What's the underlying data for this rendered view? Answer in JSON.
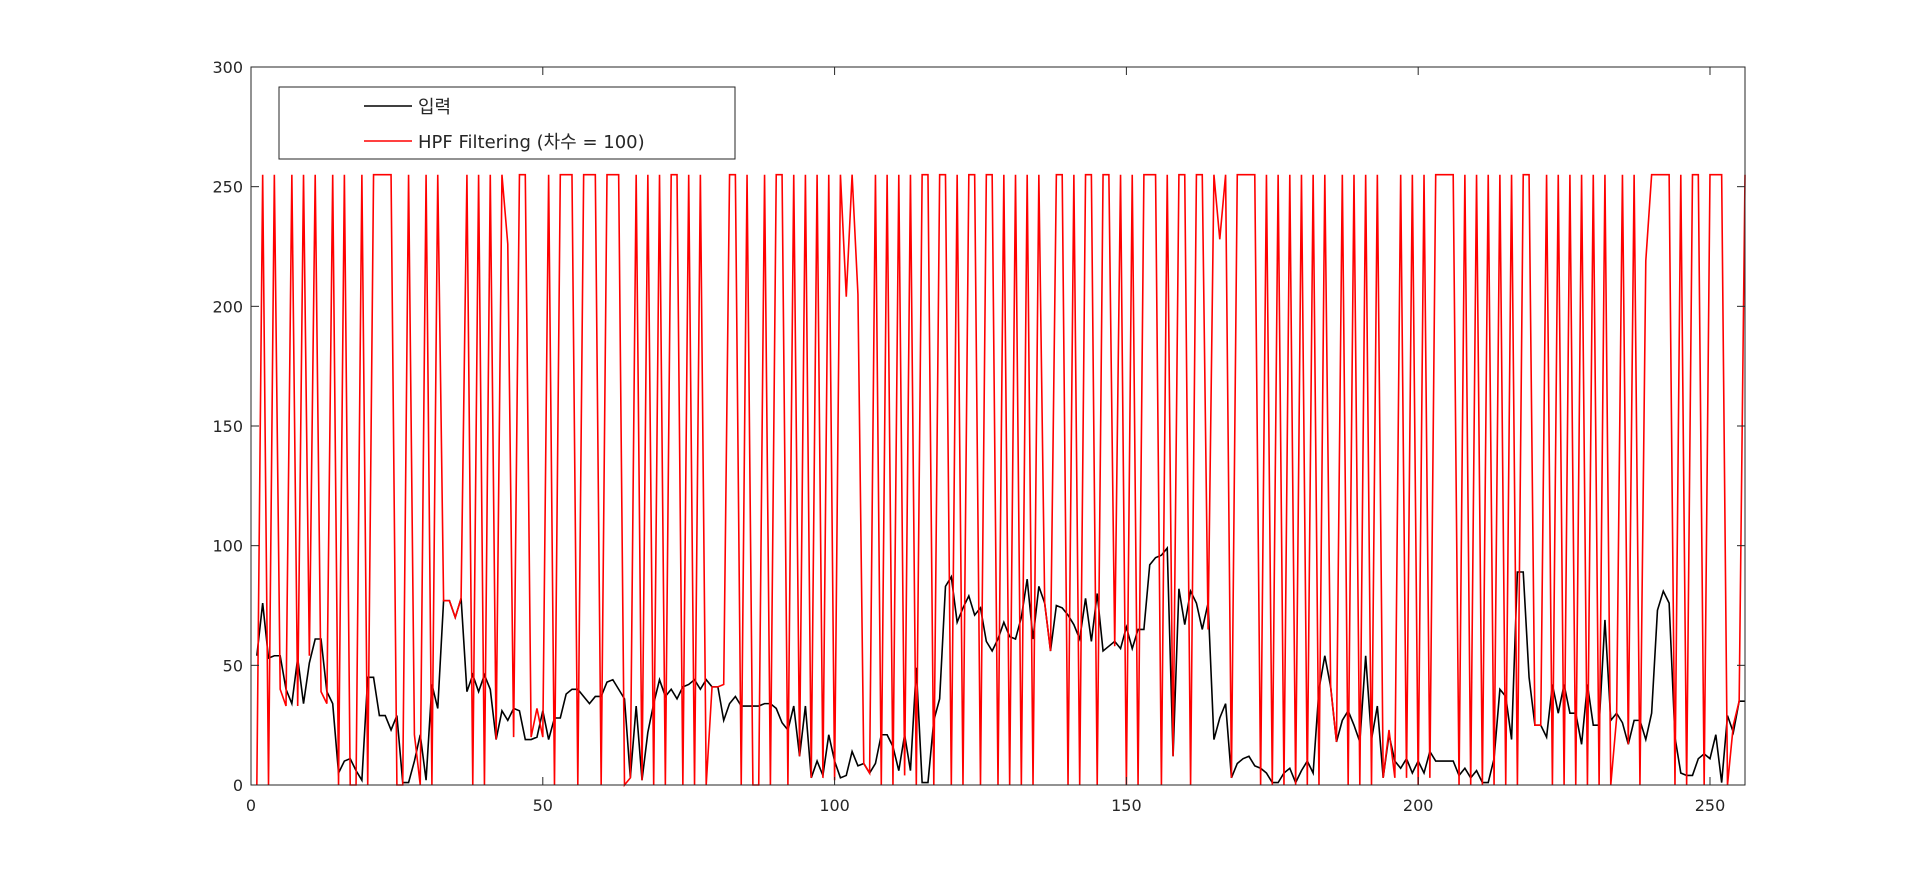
{
  "chart_data": {
    "type": "line",
    "xlim": [
      0,
      256
    ],
    "ylim": [
      0,
      300
    ],
    "xticks": [
      0,
      50,
      100,
      150,
      200,
      250
    ],
    "yticks": [
      0,
      50,
      100,
      150,
      200,
      250,
      300
    ],
    "grid": false,
    "legend_position": "top-left",
    "series": [
      {
        "name": "입력",
        "color": "#000000",
        "x_start": 1,
        "values": [
          54,
          76,
          53,
          54,
          54,
          40,
          34,
          53,
          34,
          51,
          61,
          61,
          39,
          34,
          5,
          10,
          11,
          6,
          2,
          45,
          45,
          29,
          29,
          23,
          29,
          1,
          1,
          10,
          21,
          2,
          42,
          32,
          77,
          77,
          70,
          78,
          39,
          46,
          39,
          46,
          40,
          19,
          31,
          27,
          32,
          31,
          19,
          19,
          20,
          31,
          19,
          28,
          28,
          38,
          40,
          40,
          37,
          34,
          37,
          37,
          43,
          44,
          40,
          36,
          3,
          33,
          2,
          22,
          34,
          44,
          37,
          40,
          36,
          41,
          42,
          44,
          40,
          44,
          41,
          41,
          27,
          34,
          37,
          33,
          33,
          33,
          33,
          34,
          34,
          32,
          26,
          23,
          33,
          12,
          33,
          3,
          10,
          4,
          21,
          10,
          3,
          4,
          14,
          8,
          9,
          5,
          9,
          21,
          21,
          16,
          6,
          21,
          6,
          49,
          1,
          1,
          27,
          36,
          83,
          87,
          68,
          74,
          79,
          71,
          74,
          60,
          56,
          61,
          68,
          62,
          61,
          70,
          86,
          61,
          83,
          76,
          56,
          75,
          74,
          71,
          67,
          61,
          78,
          60,
          80,
          56,
          58,
          60,
          57,
          66,
          57,
          65,
          65,
          92,
          95,
          96,
          99,
          12,
          82,
          67,
          81,
          76,
          65,
          76,
          19,
          28,
          34,
          3,
          9,
          11,
          12,
          8,
          7,
          5,
          1,
          1,
          5,
          7,
          1,
          6,
          10,
          5,
          40,
          54,
          41,
          18,
          27,
          31,
          25,
          18,
          54,
          19,
          33,
          3,
          21,
          10,
          7,
          11,
          5,
          10,
          5,
          14,
          10,
          10,
          10,
          10,
          4,
          7,
          3,
          6,
          1,
          1,
          11,
          40,
          37,
          19,
          89,
          89,
          45,
          25,
          25,
          20,
          42,
          30,
          42,
          30,
          30,
          17,
          42,
          25,
          25,
          69,
          27,
          30,
          26,
          17,
          27,
          27,
          19,
          30,
          73,
          81,
          76,
          20,
          5,
          4,
          4,
          11,
          13,
          11,
          21,
          1,
          29,
          22,
          35,
          35
        ]
      },
      {
        "name": "HPF Filtering (차수 = 100)",
        "color": "#ff0000",
        "x_start": 1,
        "values": [
          0,
          255,
          0,
          255,
          40,
          33,
          255,
          33,
          255,
          54,
          255,
          39,
          34,
          255,
          0,
          255,
          0,
          0,
          255,
          0,
          255,
          255,
          255,
          255,
          0,
          0,
          255,
          21,
          0,
          255,
          0,
          255,
          77,
          77,
          70,
          78,
          255,
          0,
          255,
          0,
          255,
          19,
          255,
          226,
          20,
          255,
          255,
          20,
          32,
          20,
          255,
          0,
          255,
          255,
          255,
          0,
          255,
          255,
          255,
          0,
          255,
          255,
          255,
          0,
          3,
          255,
          2,
          255,
          0,
          255,
          0,
          255,
          255,
          0,
          255,
          0,
          255,
          0,
          41,
          41,
          42,
          255,
          255,
          0,
          255,
          0,
          0,
          255,
          0,
          255,
          255,
          0,
          255,
          12,
          255,
          3,
          255,
          3,
          255,
          2,
          255,
          204,
          255,
          205,
          9,
          5,
          255,
          0,
          255,
          0,
          255,
          4,
          255,
          0,
          255,
          255,
          0,
          255,
          255,
          0,
          255,
          0,
          255,
          255,
          0,
          255,
          255,
          0,
          255,
          0,
          255,
          0,
          255,
          0,
          255,
          76,
          56,
          255,
          255,
          0,
          255,
          0,
          255,
          255,
          0,
          255,
          255,
          58,
          255,
          0,
          255,
          0,
          255,
          255,
          255,
          0,
          255,
          12,
          255,
          255,
          0,
          255,
          255,
          65,
          255,
          228,
          255,
          3,
          255,
          255,
          255,
          255,
          0,
          255,
          0,
          255,
          0,
          255,
          0,
          255,
          0,
          255,
          0,
          255,
          41,
          18,
          255,
          0,
          255,
          0,
          255,
          0,
          255,
          3,
          23,
          3,
          255,
          3,
          255,
          0,
          255,
          3,
          255,
          255,
          255,
          255,
          0,
          255,
          0,
          255,
          0,
          255,
          0,
          255,
          0,
          255,
          0,
          255,
          255,
          25,
          25,
          255,
          0,
          255,
          0,
          255,
          0,
          255,
          0,
          255,
          0,
          255,
          0,
          28,
          255,
          17,
          255,
          0,
          219,
          255,
          255,
          255,
          255,
          0,
          255,
          0,
          255,
          255,
          0,
          255,
          255,
          255,
          0,
          25,
          35,
          255
        ]
      }
    ]
  }
}
